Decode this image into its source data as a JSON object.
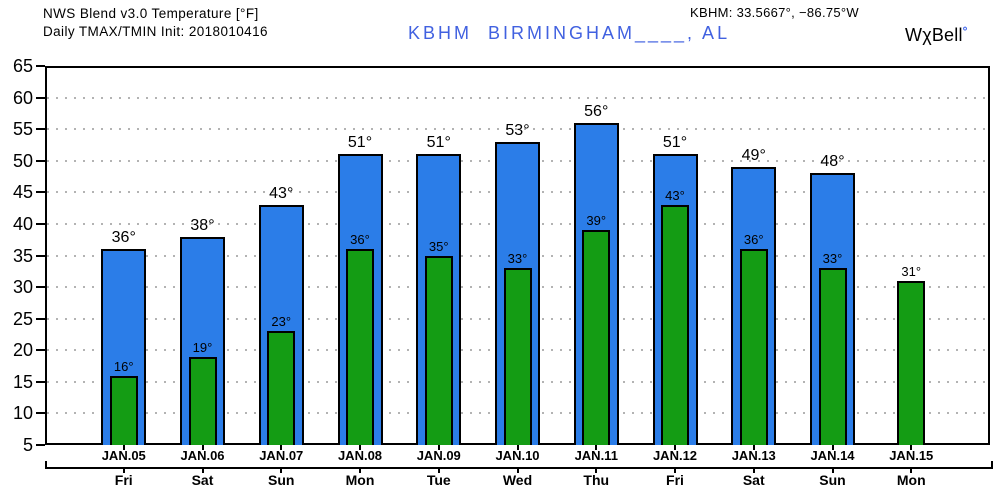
{
  "header": {
    "title": "NWS Blend v3.0 Temperature [°F]",
    "subtitle": "Daily TMAX/TMIN Init: 2018010416",
    "station": "KBHM  BIRMINGHAM____, AL",
    "coordinates": "KBHM: 33.5667°, −86.75°W",
    "logo_text": "WχBell",
    "logo_degree": "°"
  },
  "colors": {
    "tmax_bar": "#2b7de8",
    "tmin_bar": "#149c14",
    "bar_outline": "#000000",
    "station_text": "#4161e0",
    "logo_degree": "#2b55e8",
    "gridline": "#b3b3b3",
    "axis": "#000000",
    "label_text": "#000000"
  },
  "chart_data": {
    "type": "bar",
    "title": "NWS Blend v3.0 Temperature [°F]",
    "subtitle": "Daily TMAX/TMIN Init: 2018010416",
    "station": "KBHM BIRMINGHAM, AL",
    "coordinates": "KBHM: 33.5667°, −86.75°W",
    "categories": [
      "JAN.05",
      "JAN.06",
      "JAN.07",
      "JAN.08",
      "JAN.09",
      "JAN.10",
      "JAN.11",
      "JAN.12",
      "JAN.13",
      "JAN.14",
      "JAN.15"
    ],
    "weekdays": [
      "Fri",
      "Sat",
      "Sun",
      "Mon",
      "Tue",
      "Wed",
      "Thu",
      "Fri",
      "Sat",
      "Sun",
      "Mon"
    ],
    "series": [
      {
        "name": "TMAX",
        "unit": "°F",
        "values": [
          36,
          38,
          43,
          51,
          51,
          53,
          56,
          51,
          49,
          48,
          null
        ]
      },
      {
        "name": "TMIN",
        "unit": "°F",
        "values": [
          16,
          19,
          23,
          36,
          35,
          33,
          39,
          43,
          36,
          33,
          31
        ]
      }
    ],
    "ylim": [
      5,
      65
    ],
    "ytick_step": 5,
    "xlabel": "",
    "ylabel": "",
    "grid": "dotted horizontal at every 5°F",
    "legend": "none",
    "label_suffix": "°"
  }
}
